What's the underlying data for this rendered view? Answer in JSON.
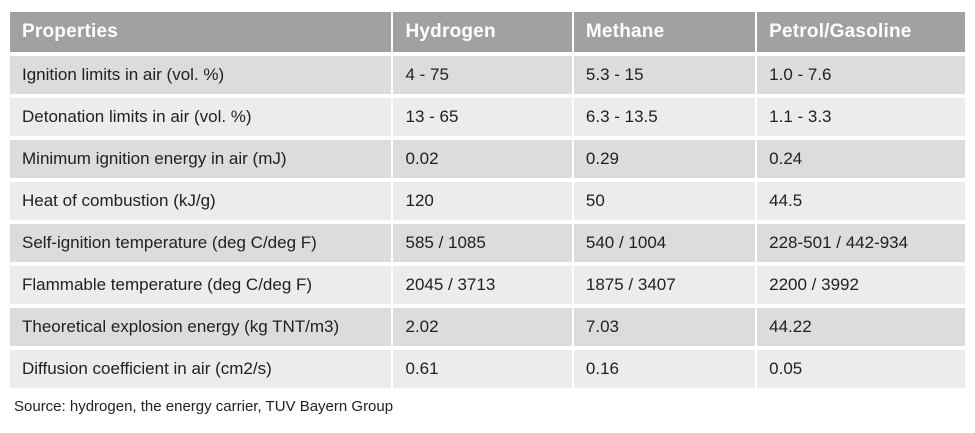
{
  "table": {
    "columns": [
      "Properties",
      "Hydrogen",
      "Methane",
      "Petrol/Gasoline"
    ],
    "rows": [
      {
        "property": "Ignition limits in air (vol. %)",
        "values": [
          "4 - 75",
          "5.3 - 15",
          "1.0 - 7.6"
        ]
      },
      {
        "property": "Detonation limits in air (vol. %)",
        "values": [
          "13 - 65",
          "6.3 - 13.5",
          "1.1 - 3.3"
        ]
      },
      {
        "property": "Minimum ignition energy in air (mJ)",
        "values": [
          "0.02",
          "0.29",
          "0.24"
        ]
      },
      {
        "property": "Heat of combustion (kJ/g)",
        "values": [
          "120",
          "50",
          "44.5"
        ]
      },
      {
        "property": "Self-ignition temperature (deg C/deg F)",
        "values": [
          "585 / 1085",
          "540 / 1004",
          "228-501 / 442-934"
        ]
      },
      {
        "property": "Flammable temperature (deg C/deg F)",
        "values": [
          "2045 / 3713",
          "1875 / 3407",
          "2200 / 3992"
        ]
      },
      {
        "property": "Theoretical explosion energy (kg TNT/m3)",
        "values": [
          "2.02",
          "7.03",
          "44.22"
        ]
      },
      {
        "property": "Diffusion coefficient in air (cm2/s)",
        "values": [
          "0.61",
          "0.16",
          "0.05"
        ]
      }
    ]
  },
  "source": "Source: hydrogen, the energy carrier, TUV Bayern Group",
  "colors": {
    "header_bg": "#a1a1a1",
    "header_text": "#ffffff",
    "row_odd_bg": "#dcdcdc",
    "row_even_bg": "#ececec",
    "text": "#212121",
    "background": "#ffffff"
  },
  "chart_data": {
    "type": "table",
    "title": "",
    "columns": [
      "Properties",
      "Hydrogen",
      "Methane",
      "Petrol/Gasoline"
    ],
    "rows": [
      [
        "Ignition limits in air (vol. %)",
        "4 - 75",
        "5.3 - 15",
        "1.0 - 7.6"
      ],
      [
        "Detonation limits in air (vol. %)",
        "13 - 65",
        "6.3 - 13.5",
        "1.1 - 3.3"
      ],
      [
        "Minimum ignition energy in air (mJ)",
        "0.02",
        "0.29",
        "0.24"
      ],
      [
        "Heat of combustion (kJ/g)",
        "120",
        "50",
        "44.5"
      ],
      [
        "Self-ignition temperature (deg C/deg F)",
        "585 / 1085",
        "540 / 1004",
        "228-501 / 442-934"
      ],
      [
        "Flammable temperature (deg C/deg F)",
        "2045 / 3713",
        "1875 / 3407",
        "2200 / 3992"
      ],
      [
        "Theoretical explosion energy (kg TNT/m3)",
        "2.02",
        "7.03",
        "44.22"
      ],
      [
        "Diffusion coefficient in air (cm2/s)",
        "0.61",
        "0.16",
        "0.05"
      ]
    ]
  }
}
